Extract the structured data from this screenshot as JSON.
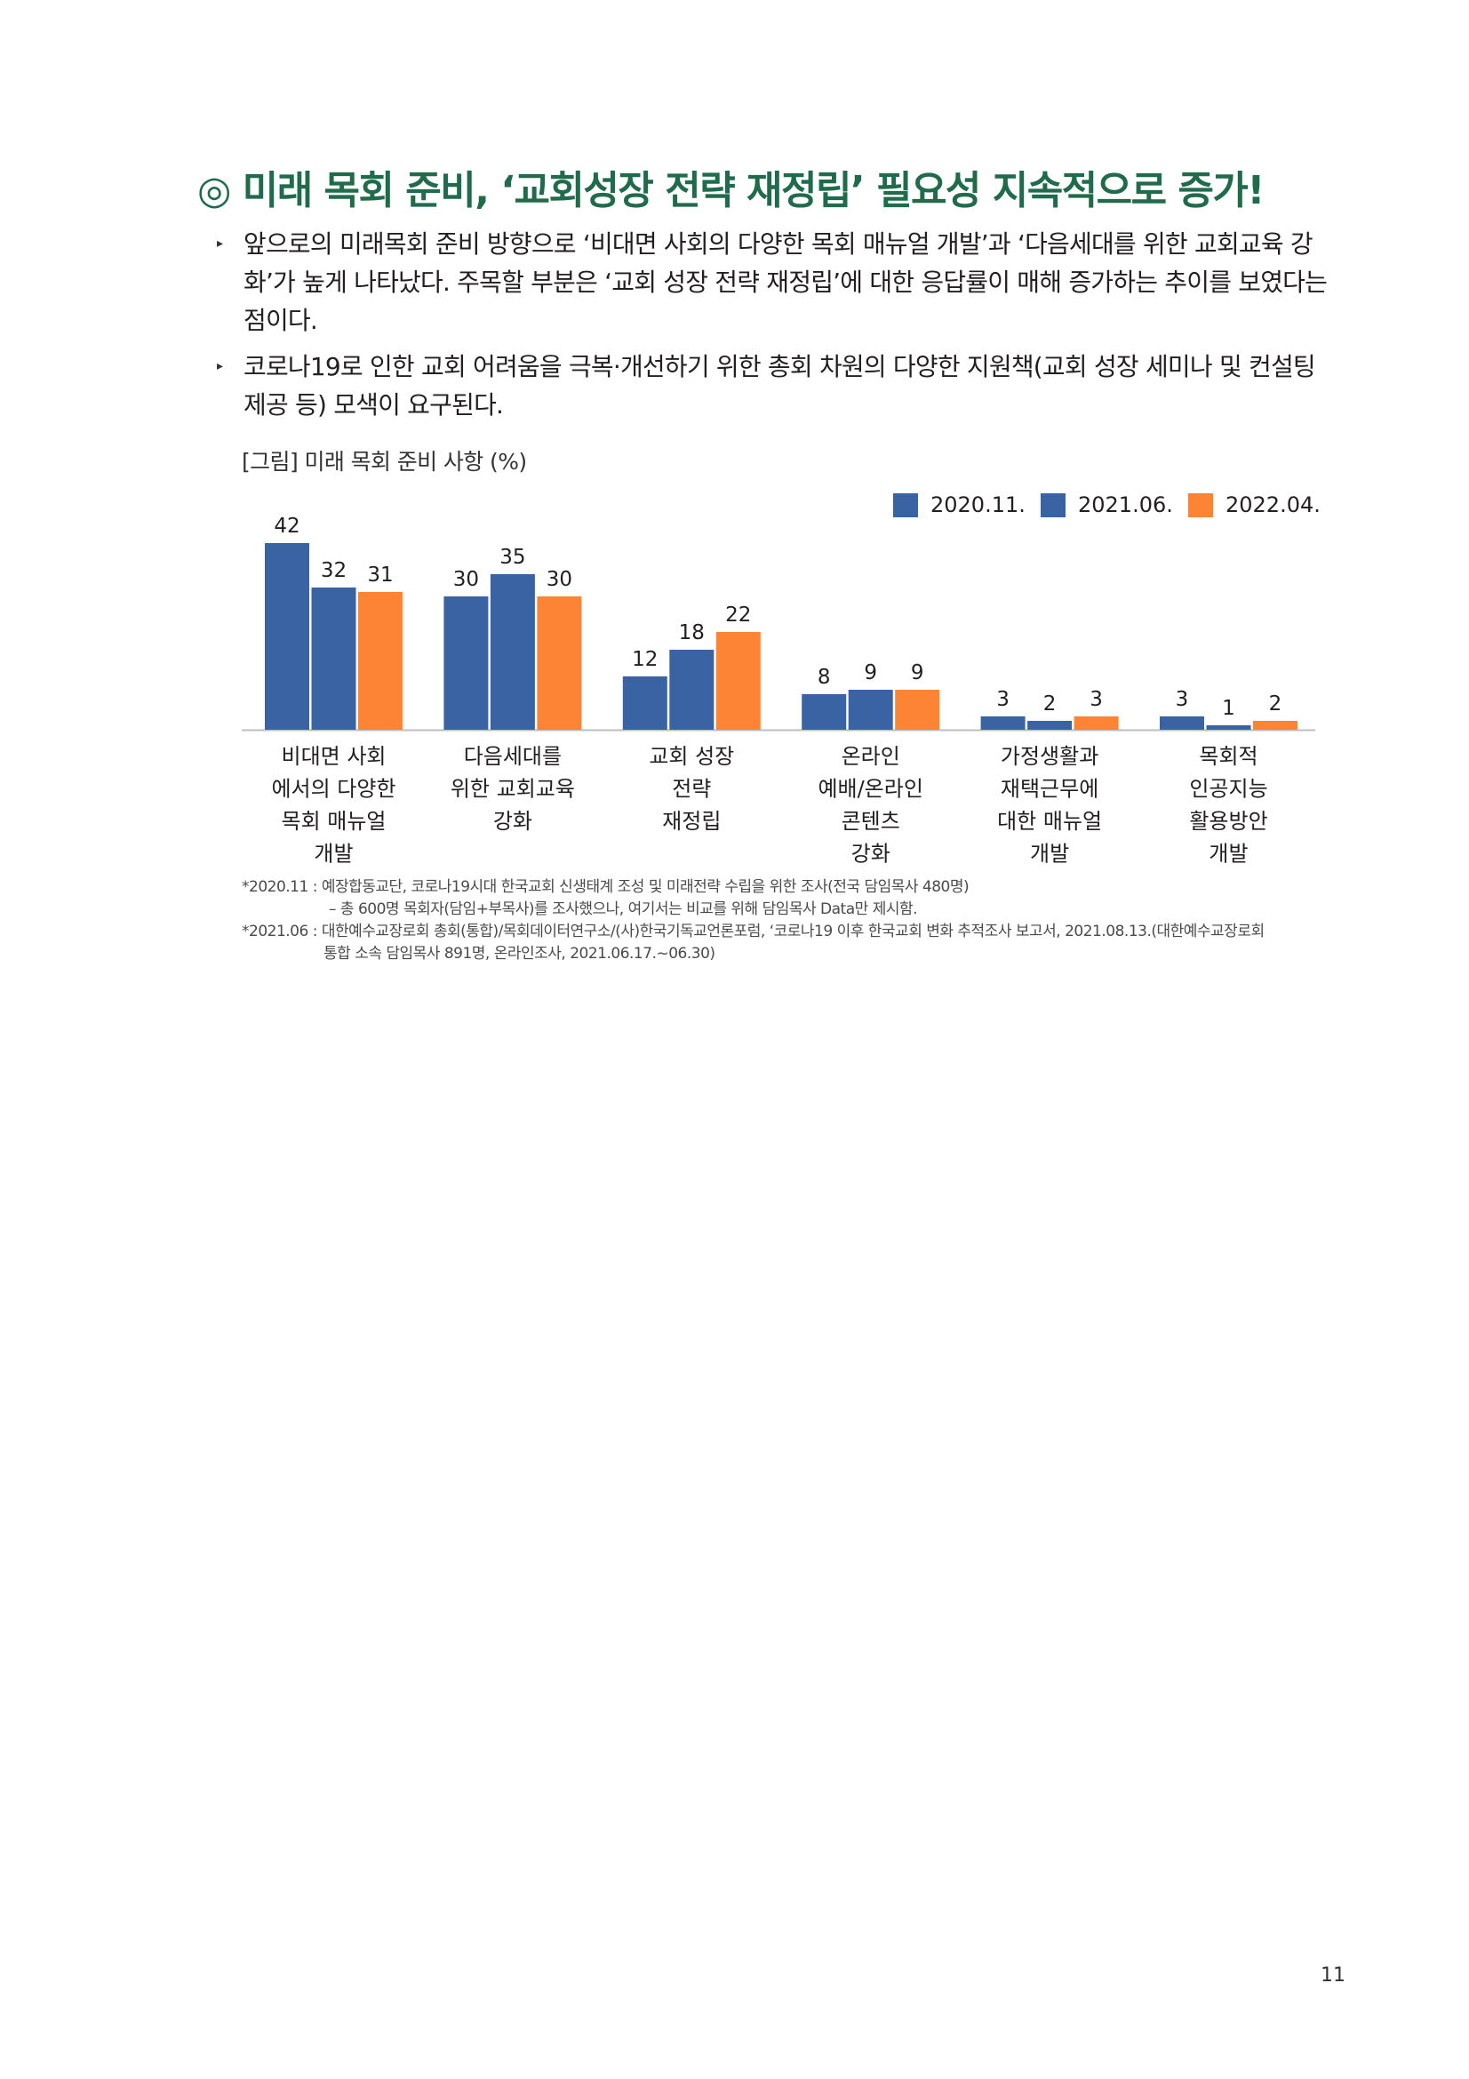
{
  "header": {
    "title": "◎ 미래 목회 준비, ‘교회성장 전략 재정립’ 필요성 지속적으로 증가!"
  },
  "bullets": [
    "앞으로의 미래목회 준비 방향으로 ‘비대면 사회의 다양한 목회 매뉴얼 개발’과 ‘다음세대를 위한 교회교육 강화’가 높게 나타났다. 주목할 부분은 ‘교회 성장 전략 재정립’에 대한 응답률이 매해 증가하는 추이를 보였다는 점이다.",
    "코로나19로 인한 교회 어려움을 극복·개선하기 위한 총회 차원의 다양한 지원책(교회 성장 세미나 및 컨설팅 제공 등) 모색이 요구된다."
  ],
  "figure": {
    "caption": "[그림] 미래 목회 준비 사항 (%)"
  },
  "chart_data": {
    "type": "bar",
    "categories": [
      [
        "비대면 사회",
        "에서의 다양한",
        "목회 매뉴얼",
        "개발"
      ],
      [
        "다음세대를",
        "위한 교회교육",
        "강화"
      ],
      [
        "교회 성장",
        "전략",
        "재정립"
      ],
      [
        "온라인",
        "예배/온라인",
        "콘텐츠",
        "강화"
      ],
      [
        "가정생활과",
        "재택근무에",
        "대한 매뉴얼",
        "개발"
      ],
      [
        "목회적",
        "인공지능",
        "활용방안",
        "개발"
      ]
    ],
    "series": [
      {
        "name": "2020.11.",
        "color": "#3a63a3",
        "values": [
          42,
          30,
          12,
          8,
          3,
          3
        ]
      },
      {
        "name": "2021.06.",
        "color": "#3a63a3",
        "values": [
          32,
          35,
          18,
          9,
          2,
          1
        ]
      },
      {
        "name": "2022.04.",
        "color": "#fd8434",
        "values": [
          31,
          30,
          22,
          9,
          3,
          2
        ]
      }
    ],
    "ylim": [
      0,
      45
    ],
    "grid": false,
    "legend": "top-right"
  },
  "notes": [
    "*2020.11 : 예장합동교단, 코로나19시대 한국교회 신생태계 조성 및 미래전략 수립을 위한 조사(전국 담임목사 480명)",
    "– 총 600명 목회자(담임+부목사)를 조사했으나, 여기서는 비교를 위해 담임목사 Data만 제시함.",
    "*2021.06 : 대한예수교장로회 총회(통합)/목회데이터연구소/(사)한국기독교언론포럼, ‘코로나19 이후 한국교회 변화 추적조사 보고서, 2021.08.13.(대한예수교장로회",
    "통합 소속 담임목사 891명, 온라인조사, 2021.06.17.~06.30)"
  ],
  "footer": {
    "page_number": "11"
  }
}
